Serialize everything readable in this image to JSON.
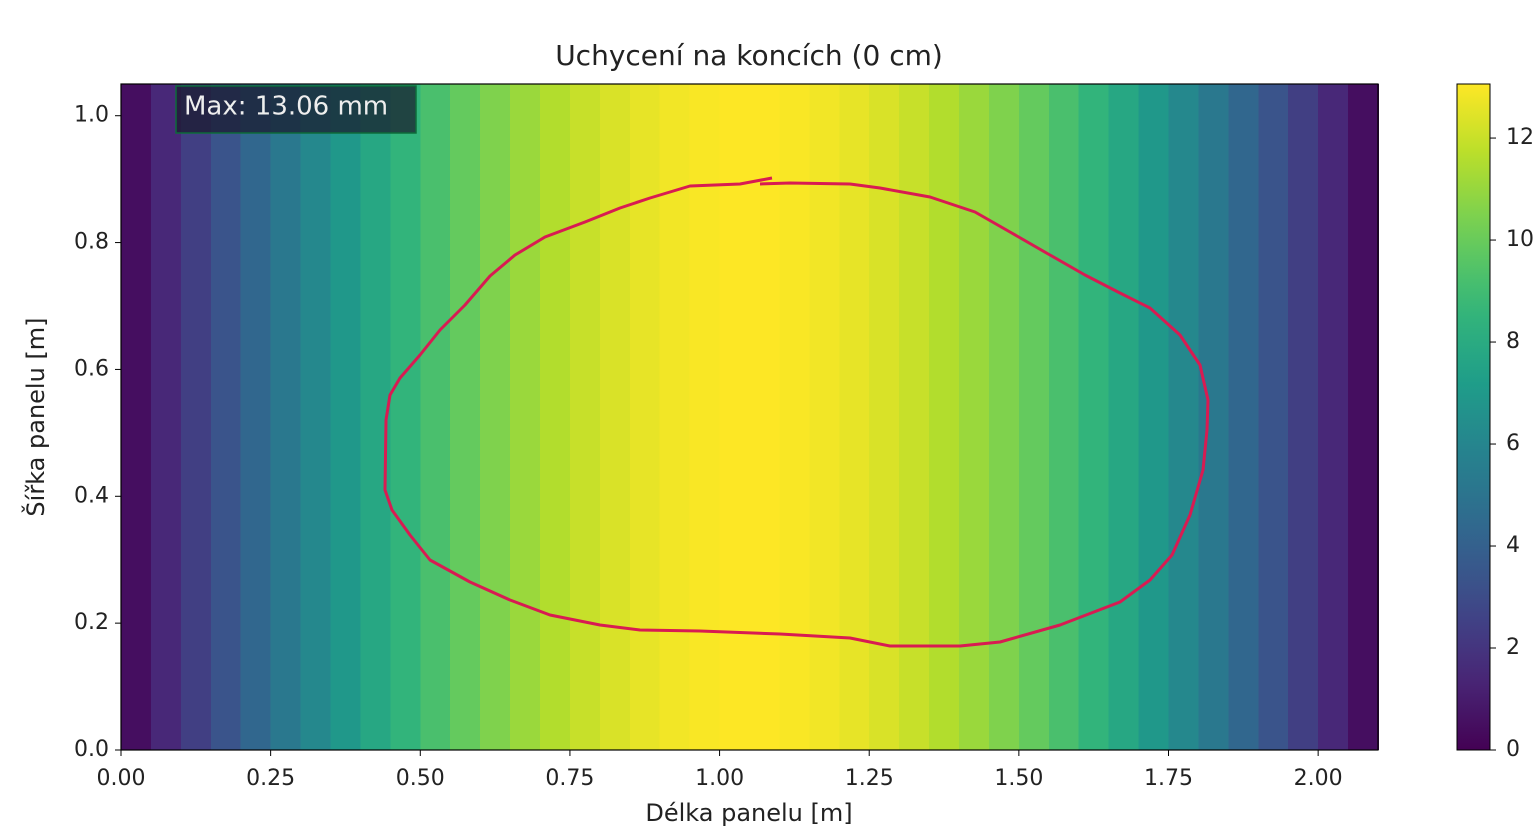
{
  "chart_data": {
    "type": "heatmap",
    "title": "Uchycení na koncích (0 cm)",
    "xlabel": "Délka panelu [m]",
    "ylabel": "Šířka panelu [m]",
    "annotation": "Max: 13.06 mm",
    "x": [
      0.025,
      0.075,
      0.125,
      0.175,
      0.225,
      0.275,
      0.325,
      0.375,
      0.425,
      0.475,
      0.525,
      0.575,
      0.625,
      0.675,
      0.725,
      0.775,
      0.825,
      0.875,
      0.925,
      0.975,
      1.025,
      1.075,
      1.125,
      1.175,
      1.225,
      1.275,
      1.325,
      1.375,
      1.425,
      1.475,
      1.525,
      1.575,
      1.625,
      1.675,
      1.725,
      1.775,
      1.825,
      1.875,
      1.925,
      1.975,
      2.025,
      2.075
    ],
    "values": [
      0.49,
      1.46,
      2.43,
      3.38,
      4.31,
      5.22,
      6.1,
      6.95,
      7.76,
      8.52,
      9.23,
      9.9,
      10.51,
      11.06,
      11.55,
      11.97,
      12.33,
      12.62,
      12.83,
      12.98,
      13.05,
      13.05,
      12.98,
      12.83,
      12.62,
      12.33,
      11.97,
      11.55,
      11.06,
      10.51,
      9.9,
      9.23,
      8.52,
      7.76,
      6.95,
      6.1,
      5.22,
      4.31,
      3.38,
      2.43,
      1.46,
      0.49
    ],
    "xlim": [
      0,
      2.1
    ],
    "ylim": [
      0,
      1.05
    ],
    "xticks": [
      {
        "value": 0,
        "label": "0.00"
      },
      0.25,
      {
        "value": 0.5,
        "label": "0.50"
      },
      0.75,
      {
        "value": 1,
        "label": "1.00"
      },
      1.25,
      {
        "value": 1.5,
        "label": "1.50"
      },
      1.75,
      {
        "value": 2,
        "label": "2.00"
      }
    ],
    "yticks": [
      {
        "value": 0,
        "label": "0.0"
      },
      0.2,
      0.4,
      0.6,
      0.8,
      {
        "value": 1,
        "label": "1.0"
      }
    ],
    "clim": [
      0,
      13.06
    ],
    "cticks": [
      0,
      2,
      4,
      6,
      8,
      10,
      12
    ],
    "colormap": "viridis"
  }
}
